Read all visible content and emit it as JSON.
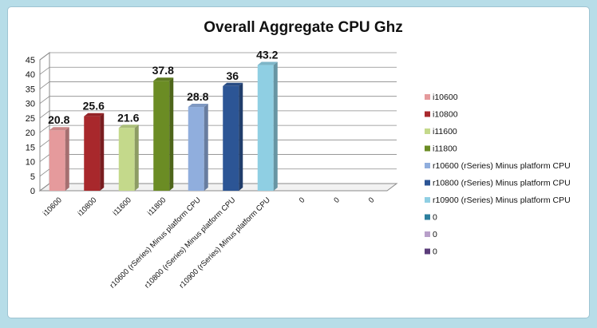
{
  "chart_data": {
    "type": "bar",
    "title": "Overall Aggregate CPU Ghz",
    "xlabel": "",
    "ylabel": "",
    "ylim": [
      0,
      45
    ],
    "yticks": [
      0,
      5,
      10,
      15,
      20,
      25,
      30,
      35,
      40,
      45
    ],
    "grid": true,
    "legend_position": "right",
    "categories": [
      "i10600",
      "i10800",
      "i11600",
      "i11800",
      "r10600 (rSeries) Minus platform CPU",
      "r10800 (rSeries) Minus platform CPU",
      "r10900 (rSeries) Minus platform CPU",
      "0",
      "0",
      "0"
    ],
    "values": [
      20.8,
      25.6,
      21.6,
      37.8,
      28.8,
      36,
      43.2,
      null,
      null,
      null
    ],
    "data_labels": [
      "20.8",
      "25.6",
      "21.6",
      "37.8",
      "28.8",
      "36",
      "43.2",
      "",
      "",
      ""
    ],
    "legend": [
      {
        "label": "i10600",
        "color": "#e59a9c"
      },
      {
        "label": "i10800",
        "color": "#a8282c"
      },
      {
        "label": "i11600",
        "color": "#c4d98b"
      },
      {
        "label": "i11800",
        "color": "#6b8c24"
      },
      {
        "label": "r10600 (rSeries) Minus platform CPU",
        "color": "#90aedd"
      },
      {
        "label": "r10800 (rSeries) Minus platform CPU",
        "color": "#2c5595"
      },
      {
        "label": "r10900 (rSeries) Minus platform CPU",
        "color": "#8fcfe3"
      },
      {
        "label": "0",
        "color": "#2c7f9e"
      },
      {
        "label": "0",
        "color": "#b89fc9"
      },
      {
        "label": "0",
        "color": "#5b3d7a"
      }
    ]
  }
}
